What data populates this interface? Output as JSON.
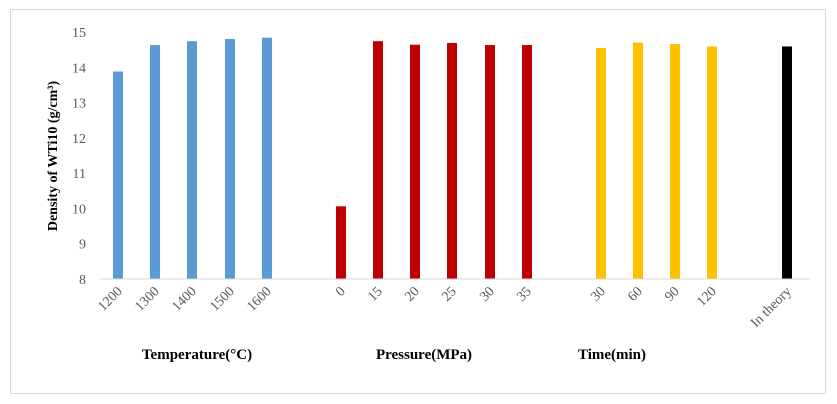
{
  "chart_data": {
    "type": "bar",
    "ylabel": "Density of WTi10 (g/cm³)",
    "ylim": [
      8,
      15
    ],
    "yticks": [
      8,
      9,
      10,
      11,
      12,
      13,
      14,
      15
    ],
    "grid": false,
    "groups": [
      {
        "label": "Temperature(°C)",
        "color": "#5b9bd5",
        "categories": [
          "1200",
          "1300",
          "1400",
          "1500",
          "1600"
        ],
        "values": [
          13.88,
          14.63,
          14.74,
          14.8,
          14.84
        ]
      },
      {
        "label": "Pressure(MPa)",
        "color": "#c00000",
        "categories": [
          "0",
          "15",
          "20",
          "25",
          "30",
          "35"
        ],
        "values": [
          10.06,
          14.74,
          14.64,
          14.69,
          14.63,
          14.63
        ]
      },
      {
        "label": "Time(min)",
        "color": "#ffc000",
        "categories": [
          "30",
          "60",
          "90",
          "120"
        ],
        "values": [
          14.55,
          14.7,
          14.66,
          14.59
        ]
      },
      {
        "label": "",
        "color": "#000000",
        "categories": [
          "In theory"
        ],
        "values": [
          14.59
        ]
      }
    ]
  }
}
